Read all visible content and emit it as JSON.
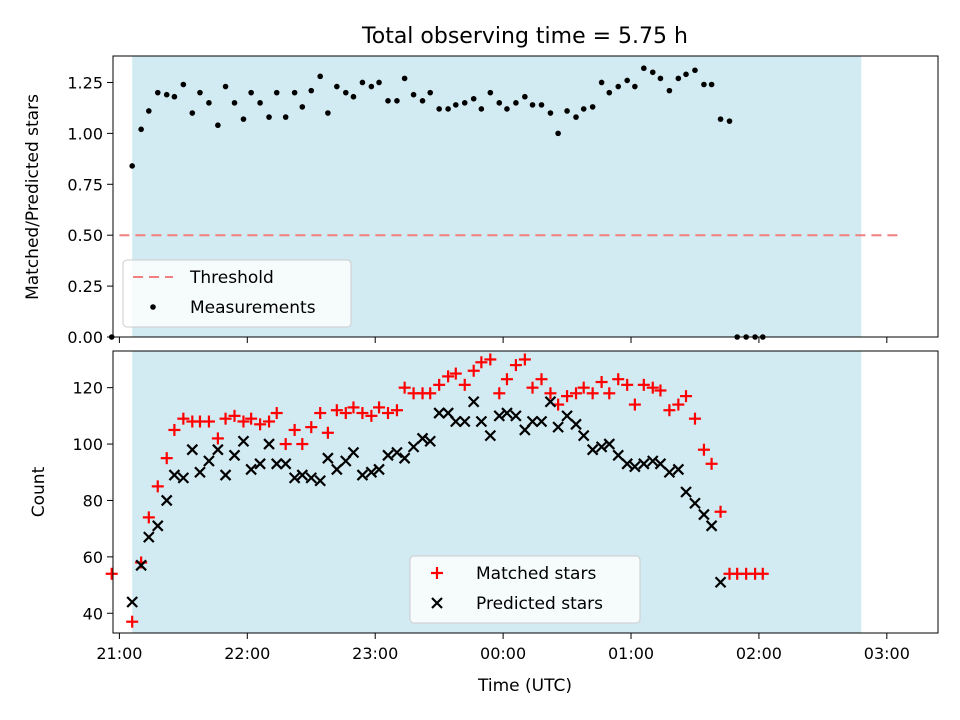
{
  "title": "Total observing time = 5.75 h",
  "colors": {
    "shade": "#add8e6",
    "threshold": "#f08080",
    "measurement": "#000000",
    "matched": "#ff0000",
    "predicted": "#000000"
  },
  "chart_data": [
    {
      "type": "scatter",
      "panel": "top",
      "ylabel": "Matched/Predicted stars",
      "xlabel": "",
      "ylim": [
        0,
        1.38
      ],
      "yticks": [
        0,
        0.25,
        0.5,
        0.75,
        1.0,
        1.25
      ],
      "ytick_labels": [
        "0.00",
        "0.25",
        "0.50",
        "0.75",
        "1.00",
        "1.25"
      ],
      "shaded_span_hours": [
        21.1,
        26.8
      ],
      "threshold": {
        "name": "Threshold",
        "value": 0.5,
        "x_range": [
          21.0,
          27.1
        ],
        "style": "dashed"
      },
      "legend": [
        "Threshold",
        "Measurements"
      ],
      "legend_position": "lower-left",
      "series": [
        {
          "name": "Measurements",
          "marker": "dot",
          "points": [
            [
              20.94,
              0.0
            ],
            [
              21.1,
              0.84
            ],
            [
              21.17,
              1.02
            ],
            [
              21.23,
              1.11
            ],
            [
              21.3,
              1.2
            ],
            [
              21.37,
              1.19
            ],
            [
              21.43,
              1.18
            ],
            [
              21.5,
              1.24
            ],
            [
              21.57,
              1.1
            ],
            [
              21.63,
              1.2
            ],
            [
              21.7,
              1.15
            ],
            [
              21.77,
              1.04
            ],
            [
              21.83,
              1.23
            ],
            [
              21.9,
              1.15
            ],
            [
              21.97,
              1.07
            ],
            [
              22.03,
              1.2
            ],
            [
              22.1,
              1.15
            ],
            [
              22.17,
              1.08
            ],
            [
              22.23,
              1.2
            ],
            [
              22.3,
              1.08
            ],
            [
              22.37,
              1.2
            ],
            [
              22.43,
              1.13
            ],
            [
              22.5,
              1.21
            ],
            [
              22.57,
              1.28
            ],
            [
              22.63,
              1.1
            ],
            [
              22.7,
              1.23
            ],
            [
              22.77,
              1.2
            ],
            [
              22.83,
              1.18
            ],
            [
              22.9,
              1.25
            ],
            [
              22.97,
              1.23
            ],
            [
              23.03,
              1.25
            ],
            [
              23.1,
              1.16
            ],
            [
              23.17,
              1.16
            ],
            [
              23.23,
              1.27
            ],
            [
              23.3,
              1.19
            ],
            [
              23.37,
              1.16
            ],
            [
              23.43,
              1.2
            ],
            [
              23.5,
              1.12
            ],
            [
              23.57,
              1.12
            ],
            [
              23.63,
              1.14
            ],
            [
              23.7,
              1.15
            ],
            [
              23.77,
              1.17
            ],
            [
              23.83,
              1.12
            ],
            [
              23.9,
              1.2
            ],
            [
              23.97,
              1.15
            ],
            [
              24.03,
              1.12
            ],
            [
              24.1,
              1.15
            ],
            [
              24.17,
              1.18
            ],
            [
              24.23,
              1.14
            ],
            [
              24.3,
              1.14
            ],
            [
              24.37,
              1.1
            ],
            [
              24.43,
              1.0
            ],
            [
              24.5,
              1.11
            ],
            [
              24.57,
              1.08
            ],
            [
              24.63,
              1.12
            ],
            [
              24.7,
              1.13
            ],
            [
              24.77,
              1.25
            ],
            [
              24.83,
              1.2
            ],
            [
              24.9,
              1.23
            ],
            [
              24.97,
              1.26
            ],
            [
              25.03,
              1.23
            ],
            [
              25.1,
              1.32
            ],
            [
              25.17,
              1.3
            ],
            [
              25.23,
              1.27
            ],
            [
              25.3,
              1.21
            ],
            [
              25.37,
              1.27
            ],
            [
              25.43,
              1.29
            ],
            [
              25.5,
              1.31
            ],
            [
              25.57,
              1.24
            ],
            [
              25.63,
              1.24
            ],
            [
              25.7,
              1.07
            ],
            [
              25.77,
              1.06
            ],
            [
              25.83,
              0.0
            ],
            [
              25.9,
              0.0
            ],
            [
              25.97,
              0.0
            ],
            [
              26.03,
              0.0
            ]
          ]
        }
      ]
    },
    {
      "type": "scatter",
      "panel": "bottom",
      "ylabel": "Count",
      "xlabel": "Time (UTC)",
      "ylim": [
        33,
        133
      ],
      "yticks": [
        40,
        60,
        80,
        100,
        120
      ],
      "ytick_labels": [
        "40",
        "60",
        "80",
        "100",
        "120"
      ],
      "xticks": [
        21,
        22,
        23,
        24,
        25,
        26,
        27
      ],
      "xtick_labels": [
        "21:00",
        "22:00",
        "23:00",
        "00:00",
        "01:00",
        "02:00",
        "03:00"
      ],
      "xlim": [
        20.95,
        27.4
      ],
      "shaded_span_hours": [
        21.1,
        26.8
      ],
      "legend": [
        "Matched stars",
        "Predicted stars"
      ],
      "legend_position": "lower-center",
      "series": [
        {
          "name": "Matched stars",
          "marker": "plus",
          "points": [
            [
              20.94,
              54
            ],
            [
              21.1,
              37
            ],
            [
              21.17,
              58
            ],
            [
              21.23,
              74
            ],
            [
              21.3,
              85
            ],
            [
              21.37,
              95
            ],
            [
              21.43,
              105
            ],
            [
              21.5,
              109
            ],
            [
              21.57,
              108
            ],
            [
              21.63,
              108
            ],
            [
              21.7,
              108
            ],
            [
              21.77,
              102
            ],
            [
              21.83,
              109
            ],
            [
              21.9,
              110
            ],
            [
              21.97,
              108
            ],
            [
              22.03,
              109
            ],
            [
              22.1,
              107
            ],
            [
              22.17,
              108
            ],
            [
              22.23,
              111
            ],
            [
              22.3,
              100
            ],
            [
              22.37,
              105
            ],
            [
              22.43,
              100
            ],
            [
              22.5,
              106
            ],
            [
              22.57,
              111
            ],
            [
              22.63,
              104
            ],
            [
              22.7,
              112
            ],
            [
              22.77,
              111
            ],
            [
              22.83,
              113
            ],
            [
              22.9,
              111
            ],
            [
              22.97,
              110
            ],
            [
              23.03,
              113
            ],
            [
              23.1,
              111
            ],
            [
              23.17,
              112
            ],
            [
              23.23,
              120
            ],
            [
              23.3,
              118
            ],
            [
              23.37,
              118
            ],
            [
              23.43,
              118
            ],
            [
              23.5,
              121
            ],
            [
              23.57,
              124
            ],
            [
              23.63,
              125
            ],
            [
              23.7,
              121
            ],
            [
              23.77,
              126
            ],
            [
              23.83,
              129
            ],
            [
              23.9,
              130
            ],
            [
              23.97,
              118
            ],
            [
              24.03,
              123
            ],
            [
              24.1,
              128
            ],
            [
              24.17,
              130
            ],
            [
              24.23,
              120
            ],
            [
              24.3,
              123
            ],
            [
              24.37,
              118
            ],
            [
              24.43,
              114
            ],
            [
              24.5,
              117
            ],
            [
              24.57,
              118
            ],
            [
              24.63,
              120
            ],
            [
              24.7,
              118
            ],
            [
              24.77,
              122
            ],
            [
              24.83,
              118
            ],
            [
              24.9,
              123
            ],
            [
              24.97,
              121
            ],
            [
              25.03,
              114
            ],
            [
              25.1,
              121
            ],
            [
              25.17,
              120
            ],
            [
              25.23,
              119
            ],
            [
              25.3,
              112
            ],
            [
              25.37,
              114
            ],
            [
              25.43,
              117
            ],
            [
              25.5,
              109
            ],
            [
              25.57,
              98
            ],
            [
              25.63,
              93
            ],
            [
              25.7,
              76
            ],
            [
              25.77,
              54
            ],
            [
              25.83,
              54
            ],
            [
              25.9,
              54
            ],
            [
              25.97,
              54
            ],
            [
              26.03,
              54
            ]
          ]
        },
        {
          "name": "Predicted stars",
          "marker": "x",
          "points": [
            [
              21.1,
              44
            ],
            [
              21.17,
              57
            ],
            [
              21.23,
              67
            ],
            [
              21.3,
              71
            ],
            [
              21.37,
              80
            ],
            [
              21.43,
              89
            ],
            [
              21.5,
              88
            ],
            [
              21.57,
              98
            ],
            [
              21.63,
              90
            ],
            [
              21.7,
              94
            ],
            [
              21.77,
              98
            ],
            [
              21.83,
              89
            ],
            [
              21.9,
              96
            ],
            [
              21.97,
              101
            ],
            [
              22.03,
              91
            ],
            [
              22.1,
              93
            ],
            [
              22.17,
              100
            ],
            [
              22.23,
              93
            ],
            [
              22.3,
              93
            ],
            [
              22.37,
              88
            ],
            [
              22.43,
              89
            ],
            [
              22.5,
              88
            ],
            [
              22.57,
              87
            ],
            [
              22.63,
              95
            ],
            [
              22.7,
              91
            ],
            [
              22.77,
              94
            ],
            [
              22.83,
              97
            ],
            [
              22.9,
              89
            ],
            [
              22.97,
              90
            ],
            [
              23.03,
              91
            ],
            [
              23.1,
              96
            ],
            [
              23.17,
              97
            ],
            [
              23.23,
              95
            ],
            [
              23.3,
              99
            ],
            [
              23.37,
              102
            ],
            [
              23.43,
              101
            ],
            [
              23.5,
              111
            ],
            [
              23.57,
              111
            ],
            [
              23.63,
              108
            ],
            [
              23.7,
              108
            ],
            [
              23.77,
              115
            ],
            [
              23.83,
              108
            ],
            [
              23.9,
              103
            ],
            [
              23.97,
              110
            ],
            [
              24.03,
              111
            ],
            [
              24.1,
              110
            ],
            [
              24.17,
              105
            ],
            [
              24.23,
              108
            ],
            [
              24.3,
              108
            ],
            [
              24.37,
              115
            ],
            [
              24.43,
              106
            ],
            [
              24.5,
              110
            ],
            [
              24.57,
              107
            ],
            [
              24.63,
              103
            ],
            [
              24.7,
              98
            ],
            [
              24.77,
              99
            ],
            [
              24.83,
              100
            ],
            [
              24.9,
              96
            ],
            [
              24.97,
              93
            ],
            [
              25.03,
              92
            ],
            [
              25.1,
              93
            ],
            [
              25.17,
              94
            ],
            [
              25.23,
              93
            ],
            [
              25.3,
              90
            ],
            [
              25.37,
              91
            ],
            [
              25.43,
              83
            ],
            [
              25.5,
              79
            ],
            [
              25.57,
              75
            ],
            [
              25.63,
              71
            ],
            [
              25.7,
              51
            ]
          ]
        }
      ]
    }
  ]
}
